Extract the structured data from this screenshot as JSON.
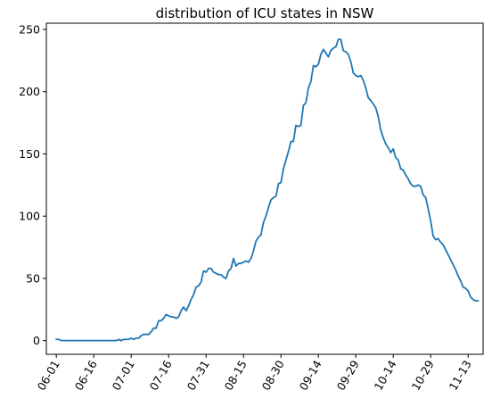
{
  "chart_data": {
    "type": "line",
    "title": "distribution of ICU states in NSW",
    "xlabel": "",
    "ylabel": "",
    "x_tick_labels": [
      "06-01",
      "06-16",
      "07-01",
      "07-16",
      "07-31",
      "08-15",
      "08-30",
      "09-14",
      "09-29",
      "10-14",
      "10-29",
      "11-13"
    ],
    "y_tick_labels": [
      "0",
      "50",
      "100",
      "150",
      "200",
      "250"
    ],
    "x_range": [
      "2021-05-28",
      "2021-11-19"
    ],
    "ylim": [
      -11,
      255
    ],
    "grid": false,
    "legend": "none",
    "series": [
      {
        "color": "#1f77b4",
        "points": [
          [
            "2021-06-01",
            1
          ],
          [
            "2021-06-02",
            1
          ],
          [
            "2021-06-03",
            0
          ],
          [
            "2021-06-04",
            0
          ],
          [
            "2021-06-05",
            0
          ],
          [
            "2021-06-10",
            0
          ],
          [
            "2021-06-15",
            0
          ],
          [
            "2021-06-20",
            0
          ],
          [
            "2021-06-25",
            0
          ],
          [
            "2021-06-26",
            1
          ],
          [
            "2021-06-27",
            0
          ],
          [
            "2021-06-28",
            1
          ],
          [
            "2021-06-29",
            1
          ],
          [
            "2021-06-30",
            1
          ],
          [
            "2021-07-01",
            2
          ],
          [
            "2021-07-02",
            1
          ],
          [
            "2021-07-03",
            2
          ],
          [
            "2021-07-04",
            2
          ],
          [
            "2021-07-05",
            4
          ],
          [
            "2021-07-06",
            5
          ],
          [
            "2021-07-07",
            5
          ],
          [
            "2021-07-08",
            5
          ],
          [
            "2021-07-09",
            7
          ],
          [
            "2021-07-10",
            10
          ],
          [
            "2021-07-11",
            10
          ],
          [
            "2021-07-12",
            16
          ],
          [
            "2021-07-13",
            16
          ],
          [
            "2021-07-14",
            18
          ],
          [
            "2021-07-15",
            21
          ],
          [
            "2021-07-16",
            20
          ],
          [
            "2021-07-17",
            19
          ],
          [
            "2021-07-18",
            19
          ],
          [
            "2021-07-19",
            18
          ],
          [
            "2021-07-20",
            19
          ],
          [
            "2021-07-21",
            24
          ],
          [
            "2021-07-22",
            27
          ],
          [
            "2021-07-23",
            24
          ],
          [
            "2021-07-24",
            28
          ],
          [
            "2021-07-25",
            33
          ],
          [
            "2021-07-26",
            37
          ],
          [
            "2021-07-27",
            43
          ],
          [
            "2021-07-28",
            44
          ],
          [
            "2021-07-29",
            47
          ],
          [
            "2021-07-30",
            56
          ],
          [
            "2021-07-31",
            55
          ],
          [
            "2021-08-01",
            58
          ],
          [
            "2021-08-02",
            58
          ],
          [
            "2021-08-03",
            55
          ],
          [
            "2021-08-04",
            54
          ],
          [
            "2021-08-05",
            53
          ],
          [
            "2021-08-06",
            53
          ],
          [
            "2021-08-07",
            51
          ],
          [
            "2021-08-08",
            50
          ],
          [
            "2021-08-09",
            56
          ],
          [
            "2021-08-10",
            58
          ],
          [
            "2021-08-11",
            66
          ],
          [
            "2021-08-12",
            60
          ],
          [
            "2021-08-13",
            62
          ],
          [
            "2021-08-14",
            62
          ],
          [
            "2021-08-15",
            63
          ],
          [
            "2021-08-16",
            64
          ],
          [
            "2021-08-17",
            63
          ],
          [
            "2021-08-18",
            66
          ],
          [
            "2021-08-19",
            72
          ],
          [
            "2021-08-20",
            80
          ],
          [
            "2021-08-21",
            83
          ],
          [
            "2021-08-22",
            85
          ],
          [
            "2021-08-23",
            95
          ],
          [
            "2021-08-24",
            100
          ],
          [
            "2021-08-25",
            107
          ],
          [
            "2021-08-26",
            113
          ],
          [
            "2021-08-27",
            115
          ],
          [
            "2021-08-28",
            116
          ],
          [
            "2021-08-29",
            126
          ],
          [
            "2021-08-30",
            127
          ],
          [
            "2021-08-31",
            138
          ],
          [
            "2021-09-01",
            145
          ],
          [
            "2021-09-02",
            152
          ],
          [
            "2021-09-03",
            160
          ],
          [
            "2021-09-04",
            160
          ],
          [
            "2021-09-05",
            173
          ],
          [
            "2021-09-06",
            172
          ],
          [
            "2021-09-07",
            173
          ],
          [
            "2021-09-08",
            189
          ],
          [
            "2021-09-09",
            191
          ],
          [
            "2021-09-10",
            203
          ],
          [
            "2021-09-11",
            208
          ],
          [
            "2021-09-12",
            221
          ],
          [
            "2021-09-13",
            220
          ],
          [
            "2021-09-14",
            222
          ],
          [
            "2021-09-15",
            230
          ],
          [
            "2021-09-16",
            234
          ],
          [
            "2021-09-17",
            231
          ],
          [
            "2021-09-18",
            228
          ],
          [
            "2021-09-19",
            233
          ],
          [
            "2021-09-20",
            235
          ],
          [
            "2021-09-21",
            236
          ],
          [
            "2021-09-22",
            242
          ],
          [
            "2021-09-23",
            242
          ],
          [
            "2021-09-24",
            233
          ],
          [
            "2021-09-25",
            232
          ],
          [
            "2021-09-26",
            230
          ],
          [
            "2021-09-27",
            224
          ],
          [
            "2021-09-28",
            215
          ],
          [
            "2021-09-29",
            213
          ],
          [
            "2021-09-30",
            212
          ],
          [
            "2021-10-01",
            213
          ],
          [
            "2021-10-02",
            209
          ],
          [
            "2021-10-03",
            203
          ],
          [
            "2021-10-04",
            195
          ],
          [
            "2021-10-05",
            193
          ],
          [
            "2021-10-06",
            190
          ],
          [
            "2021-10-07",
            187
          ],
          [
            "2021-10-08",
            180
          ],
          [
            "2021-10-09",
            169
          ],
          [
            "2021-10-10",
            163
          ],
          [
            "2021-10-11",
            158
          ],
          [
            "2021-10-12",
            155
          ],
          [
            "2021-10-13",
            151
          ],
          [
            "2021-10-14",
            154
          ],
          [
            "2021-10-15",
            147
          ],
          [
            "2021-10-16",
            145
          ],
          [
            "2021-10-17",
            138
          ],
          [
            "2021-10-18",
            137
          ],
          [
            "2021-10-19",
            133
          ],
          [
            "2021-10-20",
            130
          ],
          [
            "2021-10-21",
            126
          ],
          [
            "2021-10-22",
            124
          ],
          [
            "2021-10-23",
            124
          ],
          [
            "2021-10-24",
            125
          ],
          [
            "2021-10-25",
            124
          ],
          [
            "2021-10-26",
            117
          ],
          [
            "2021-10-27",
            115
          ],
          [
            "2021-10-28",
            106
          ],
          [
            "2021-10-29",
            96
          ],
          [
            "2021-10-30",
            84
          ],
          [
            "2021-10-31",
            81
          ],
          [
            "2021-11-01",
            82
          ],
          [
            "2021-11-02",
            79
          ],
          [
            "2021-11-03",
            77
          ],
          [
            "2021-11-04",
            73
          ],
          [
            "2021-11-05",
            69
          ],
          [
            "2021-11-06",
            65
          ],
          [
            "2021-11-07",
            61
          ],
          [
            "2021-11-08",
            57
          ],
          [
            "2021-11-09",
            52
          ],
          [
            "2021-11-10",
            48
          ],
          [
            "2021-11-11",
            43
          ],
          [
            "2021-11-12",
            42
          ],
          [
            "2021-11-13",
            40
          ],
          [
            "2021-11-14",
            35
          ],
          [
            "2021-11-15",
            33
          ],
          [
            "2021-11-16",
            32
          ],
          [
            "2021-11-17",
            32
          ]
        ]
      }
    ]
  }
}
